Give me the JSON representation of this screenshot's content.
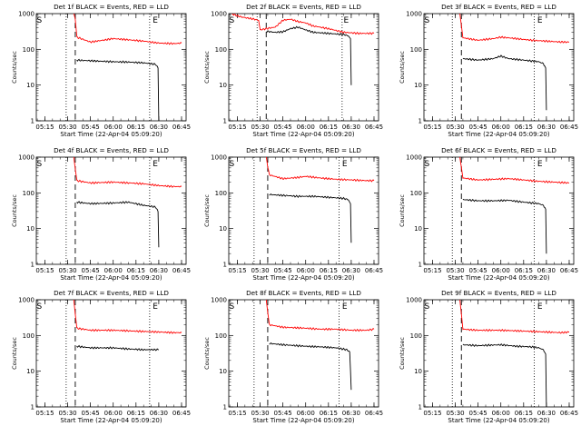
{
  "colors": {
    "events": "#000000",
    "lld": "#ff0000",
    "axes": "#000000",
    "background": "#ffffff"
  },
  "chart_data": [
    {
      "type": "line",
      "title": "Det 1f BLACK = Events, RED = LLD",
      "xlabel": "Start Time (22-Apr-04 05:09:20)",
      "ylabel": "Counts/sec",
      "yscale": "log",
      "ylim": [
        1,
        1000
      ],
      "xlim": [
        "05:09:20",
        "06:48:00"
      ],
      "x_ticks": [
        "05:15",
        "05:30",
        "05:45",
        "06:00",
        "06:15",
        "06:30",
        "06:45"
      ],
      "y_ticks": [
        "1",
        "10",
        "100",
        "1000"
      ],
      "vlines_dotted": [
        "05:29:00",
        "06:24:00"
      ],
      "vlines_dashed": [
        "05:35:00"
      ],
      "markers": [
        {
          "label": "S",
          "x": "05:09:40"
        },
        {
          "label": "E",
          "x": "06:26:00"
        }
      ],
      "series": [
        {
          "name": "LLD",
          "color": "red",
          "x": [
            "05:34:00",
            "05:35:00",
            "05:36:00",
            "05:45:00",
            "05:55:00",
            "06:00:00",
            "06:10:00",
            "06:20:00",
            "06:30:00",
            "06:40:00",
            "06:45:00"
          ],
          "y": [
            1000,
            700,
            220,
            160,
            185,
            200,
            185,
            170,
            150,
            145,
            150
          ]
        },
        {
          "name": "Events",
          "color": "black",
          "x": [
            "05:36:00",
            "05:45:00",
            "06:00:00",
            "06:10:00",
            "06:20:00",
            "06:28:00",
            "06:29:30",
            "06:30:00"
          ],
          "y": [
            50,
            48,
            45,
            44,
            42,
            38,
            30,
            1
          ]
        }
      ]
    },
    {
      "type": "line",
      "title": "Det 2f BLACK = Events, RED = LLD",
      "xlabel": "Start Time (22-Apr-04 05:09:20)",
      "ylabel": "Counts/sec",
      "yscale": "log",
      "ylim": [
        1,
        1000
      ],
      "xlim": [
        "05:09:20",
        "06:48:00"
      ],
      "x_ticks": [
        "05:15",
        "05:30",
        "05:45",
        "06:00",
        "06:15",
        "06:30",
        "06:45"
      ],
      "y_ticks": [
        "1",
        "10",
        "100",
        "1000"
      ],
      "vlines_dotted": [
        "05:28:00",
        "06:24:00"
      ],
      "vlines_dashed": [
        "05:34:00"
      ],
      "markers": [
        {
          "label": "S",
          "x": "05:09:40"
        },
        {
          "label": "E",
          "x": "06:25:00"
        }
      ],
      "series": [
        {
          "name": "LLD",
          "color": "red",
          "x": [
            "05:11:00",
            "05:14:00",
            "05:18:00",
            "05:22:00",
            "05:26:00",
            "05:29:00",
            "05:30:00",
            "05:34:00",
            "05:40:00",
            "05:45:00",
            "05:50:00",
            "05:55:00",
            "06:00:00",
            "06:05:00",
            "06:15:00",
            "06:25:00",
            "06:35:00",
            "06:45:00"
          ],
          "y": [
            1000,
            900,
            800,
            750,
            700,
            650,
            350,
            380,
            420,
            650,
            700,
            600,
            550,
            450,
            380,
            300,
            280,
            280
          ]
        },
        {
          "name": "Events",
          "color": "black",
          "x": [
            "05:34:00",
            "05:40:00",
            "05:45:00",
            "05:50:00",
            "05:55:00",
            "06:00:00",
            "06:05:00",
            "06:15:00",
            "06:25:00",
            "06:28:00",
            "06:29:30",
            "06:30:00"
          ],
          "y": [
            320,
            300,
            310,
            380,
            420,
            350,
            300,
            280,
            260,
            240,
            200,
            10
          ]
        }
      ]
    },
    {
      "type": "line",
      "title": "Det 3f BLACK = Events, RED = LLD",
      "xlabel": "Start Time (22-Apr-04 05:09:20)",
      "ylabel": "Counts/sec",
      "yscale": "log",
      "ylim": [
        1,
        1000
      ],
      "xlim": [
        "05:09:20",
        "06:48:00"
      ],
      "x_ticks": [
        "05:15",
        "05:30",
        "05:45",
        "06:00",
        "06:15",
        "06:30",
        "06:45"
      ],
      "y_ticks": [
        "1",
        "10",
        "100",
        "1000"
      ],
      "vlines_dotted": [
        "05:28:00",
        "06:22:00"
      ],
      "vlines_dashed": [
        "05:34:00"
      ],
      "markers": [
        {
          "label": "S",
          "x": "05:09:40"
        },
        {
          "label": "E",
          "x": "06:24:00"
        }
      ],
      "series": [
        {
          "name": "LLD",
          "color": "red",
          "x": [
            "05:33:00",
            "05:35:00",
            "05:45:00",
            "05:55:00",
            "06:00:00",
            "06:10:00",
            "06:20:00",
            "06:30:00",
            "06:40:00",
            "06:45:00"
          ],
          "y": [
            1000,
            210,
            180,
            200,
            220,
            200,
            180,
            170,
            160,
            160
          ]
        },
        {
          "name": "Events",
          "color": "black",
          "x": [
            "05:35:00",
            "05:45:00",
            "05:55:00",
            "06:00:00",
            "06:05:00",
            "06:15:00",
            "06:25:00",
            "06:28:00",
            "06:29:30",
            "06:30:00"
          ],
          "y": [
            55,
            50,
            55,
            65,
            55,
            50,
            45,
            40,
            30,
            2
          ]
        }
      ]
    },
    {
      "type": "line",
      "title": "Det 4f BLACK = Events, RED = LLD",
      "xlabel": "Start Time (22-Apr-04 05:09:20)",
      "ylabel": "Counts/sec",
      "yscale": "log",
      "ylim": [
        1,
        1000
      ],
      "xlim": [
        "05:09:20",
        "06:48:00"
      ],
      "x_ticks": [
        "05:15",
        "05:30",
        "05:45",
        "06:00",
        "06:15",
        "06:30",
        "06:45"
      ],
      "y_ticks": [
        "1",
        "10",
        "100",
        "1000"
      ],
      "vlines_dotted": [
        "05:29:00",
        "06:24:00"
      ],
      "vlines_dashed": [
        "05:35:00"
      ],
      "markers": [
        {
          "label": "S",
          "x": "05:09:40"
        },
        {
          "label": "E",
          "x": "06:26:00"
        }
      ],
      "series": [
        {
          "name": "LLD",
          "color": "red",
          "x": [
            "05:34:00",
            "05:36:00",
            "05:45:00",
            "06:00:00",
            "06:10:00",
            "06:20:00",
            "06:30:00",
            "06:40:00",
            "06:45:00"
          ],
          "y": [
            1000,
            220,
            190,
            200,
            190,
            180,
            160,
            150,
            150
          ]
        },
        {
          "name": "Events",
          "color": "black",
          "x": [
            "05:36:00",
            "05:45:00",
            "06:00:00",
            "06:10:00",
            "06:20:00",
            "06:28:00",
            "06:29:30",
            "06:30:00"
          ],
          "y": [
            55,
            50,
            52,
            55,
            45,
            40,
            30,
            3
          ]
        }
      ]
    },
    {
      "type": "line",
      "title": "Det 5f BLACK = Events, RED = LLD",
      "xlabel": "Start Time (22-Apr-04 05:09:20)",
      "ylabel": "Counts/sec",
      "yscale": "log",
      "ylim": [
        1,
        1000
      ],
      "xlim": [
        "05:09:20",
        "06:48:00"
      ],
      "x_ticks": [
        "05:15",
        "05:30",
        "05:45",
        "06:00",
        "06:15",
        "06:30",
        "06:45"
      ],
      "y_ticks": [
        "1",
        "10",
        "100",
        "1000"
      ],
      "vlines_dotted": [
        "05:26:00",
        "06:22:00"
      ],
      "vlines_dashed": [
        "05:35:00"
      ],
      "markers": [
        {
          "label": "S",
          "x": "05:09:40"
        },
        {
          "label": "E",
          "x": "06:24:00"
        }
      ],
      "series": [
        {
          "name": "LLD",
          "color": "red",
          "x": [
            "05:34:00",
            "05:36:00",
            "05:45:00",
            "05:55:00",
            "06:00:00",
            "06:10:00",
            "06:20:00",
            "06:30:00",
            "06:40:00",
            "06:45:00"
          ],
          "y": [
            1000,
            320,
            250,
            270,
            290,
            260,
            240,
            230,
            220,
            220
          ]
        },
        {
          "name": "Events",
          "color": "black",
          "x": [
            "05:36:00",
            "05:45:00",
            "05:55:00",
            "06:05:00",
            "06:15:00",
            "06:25:00",
            "06:28:00",
            "06:29:30",
            "06:30:00"
          ],
          "y": [
            90,
            85,
            80,
            80,
            75,
            70,
            65,
            50,
            4
          ]
        }
      ]
    },
    {
      "type": "line",
      "title": "Det 6f BLACK = Events, RED = LLD",
      "xlabel": "Start Time (22-Apr-04 05:09:20)",
      "ylabel": "Counts/sec",
      "yscale": "log",
      "ylim": [
        1,
        1000
      ],
      "xlim": [
        "05:09:20",
        "06:48:00"
      ],
      "x_ticks": [
        "05:15",
        "05:30",
        "05:45",
        "06:00",
        "06:15",
        "06:30",
        "06:45"
      ],
      "y_ticks": [
        "1",
        "10",
        "100",
        "1000"
      ],
      "vlines_dotted": [
        "05:28:00",
        "06:22:00"
      ],
      "vlines_dashed": [
        "05:34:00"
      ],
      "markers": [
        {
          "label": "S",
          "x": "05:09:40"
        },
        {
          "label": "E",
          "x": "06:24:00"
        }
      ],
      "series": [
        {
          "name": "LLD",
          "color": "red",
          "x": [
            "05:33:00",
            "05:35:00",
            "05:45:00",
            "05:55:00",
            "06:05:00",
            "06:15:00",
            "06:25:00",
            "06:35:00",
            "06:45:00"
          ],
          "y": [
            1000,
            260,
            230,
            240,
            250,
            230,
            210,
            200,
            190
          ]
        },
        {
          "name": "Events",
          "color": "black",
          "x": [
            "05:35:00",
            "05:45:00",
            "05:55:00",
            "06:05:00",
            "06:15:00",
            "06:25:00",
            "06:28:00",
            "06:29:30",
            "06:30:00"
          ],
          "y": [
            65,
            60,
            60,
            62,
            55,
            50,
            45,
            35,
            2
          ]
        }
      ]
    },
    {
      "type": "line",
      "title": "Det 7f BLACK = Events, RED = LLD",
      "xlabel": "Start Time (22-Apr-04 05:09:20)",
      "ylabel": "Counts/sec",
      "yscale": "log",
      "ylim": [
        1,
        1000
      ],
      "xlim": [
        "05:09:20",
        "06:48:00"
      ],
      "x_ticks": [
        "05:15",
        "05:30",
        "05:45",
        "06:00",
        "06:15",
        "06:30",
        "06:45"
      ],
      "y_ticks": [
        "1",
        "10",
        "100",
        "1000"
      ],
      "vlines_dotted": [
        "05:29:00",
        "06:24:00"
      ],
      "vlines_dashed": [
        "05:35:00"
      ],
      "markers": [
        {
          "label": "S",
          "x": "05:09:40"
        },
        {
          "label": "E",
          "x": "06:26:00"
        }
      ],
      "series": [
        {
          "name": "LLD",
          "color": "red",
          "x": [
            "05:34:00",
            "05:36:00",
            "05:45:00",
            "06:00:00",
            "06:10:00",
            "06:20:00",
            "06:30:00",
            "06:40:00",
            "06:45:00"
          ],
          "y": [
            1000,
            160,
            140,
            140,
            135,
            130,
            125,
            120,
            120
          ]
        },
        {
          "name": "Events",
          "color": "black",
          "x": [
            "05:36:00",
            "05:45:00",
            "06:00:00",
            "06:10:00",
            "06:20:00",
            "06:30:00"
          ],
          "y": [
            50,
            45,
            45,
            42,
            40,
            40
          ]
        }
      ]
    },
    {
      "type": "line",
      "title": "Det 8f BLACK = Events, RED = LLD",
      "xlabel": "Start Time (22-Apr-04 05:09:20)",
      "ylabel": "Counts/sec",
      "yscale": "log",
      "ylim": [
        1,
        1000
      ],
      "xlim": [
        "05:09:20",
        "06:48:00"
      ],
      "x_ticks": [
        "05:15",
        "05:30",
        "05:45",
        "06:00",
        "06:15",
        "06:30",
        "06:45"
      ],
      "y_ticks": [
        "1",
        "10",
        "100",
        "1000"
      ],
      "vlines_dotted": [
        "05:26:00",
        "06:22:00"
      ],
      "vlines_dashed": [
        "05:35:00"
      ],
      "markers": [
        {
          "label": "S",
          "x": "05:09:40"
        },
        {
          "label": "E",
          "x": "06:24:00"
        }
      ],
      "series": [
        {
          "name": "LLD",
          "color": "red",
          "x": [
            "05:34:00",
            "05:36:00",
            "05:45:00",
            "06:00:00",
            "06:10:00",
            "06:20:00",
            "06:30:00",
            "06:40:00",
            "06:45:00"
          ],
          "y": [
            1000,
            200,
            170,
            160,
            150,
            150,
            140,
            140,
            150
          ]
        },
        {
          "name": "Events",
          "color": "black",
          "x": [
            "05:36:00",
            "05:45:00",
            "06:00:00",
            "06:10:00",
            "06:20:00",
            "06:27:00",
            "06:29:00",
            "06:30:00"
          ],
          "y": [
            60,
            55,
            50,
            48,
            45,
            40,
            35,
            3
          ]
        }
      ]
    },
    {
      "type": "line",
      "title": "Det 9f BLACK = Events, RED = LLD",
      "xlabel": "Start Time (22-Apr-04 05:09:20)",
      "ylabel": "Counts/sec",
      "yscale": "log",
      "ylim": [
        1,
        1000
      ],
      "xlim": [
        "05:09:20",
        "06:48:00"
      ],
      "x_ticks": [
        "05:15",
        "05:30",
        "05:45",
        "06:00",
        "06:15",
        "06:30",
        "06:45"
      ],
      "y_ticks": [
        "1",
        "10",
        "100",
        "1000"
      ],
      "vlines_dotted": [
        "05:28:00",
        "06:22:00"
      ],
      "vlines_dashed": [
        "05:34:00"
      ],
      "markers": [
        {
          "label": "S",
          "x": "05:09:40"
        },
        {
          "label": "E",
          "x": "06:24:00"
        }
      ],
      "series": [
        {
          "name": "LLD",
          "color": "red",
          "x": [
            "05:33:00",
            "05:35:00",
            "05:45:00",
            "06:00:00",
            "06:10:00",
            "06:20:00",
            "06:30:00",
            "06:40:00",
            "06:45:00"
          ],
          "y": [
            1000,
            150,
            140,
            140,
            135,
            130,
            125,
            120,
            125
          ]
        },
        {
          "name": "Events",
          "color": "black",
          "x": [
            "05:35:00",
            "05:45:00",
            "06:00:00",
            "06:10:00",
            "06:20:00",
            "06:25:00",
            "06:28:00",
            "06:29:30",
            "06:30:00"
          ],
          "y": [
            55,
            52,
            55,
            50,
            48,
            45,
            40,
            30,
            1
          ]
        }
      ]
    }
  ]
}
